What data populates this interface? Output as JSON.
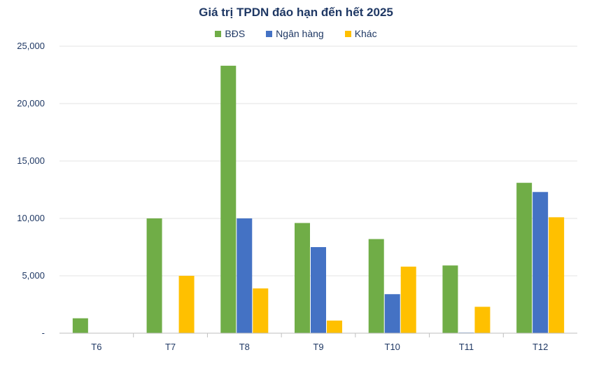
{
  "chart_data": {
    "type": "bar",
    "title": "Giá trị TPDN đáo hạn đến hết 2025",
    "categories": [
      "T6",
      "T7",
      "T8",
      "T9",
      "T10",
      "T11",
      "T12"
    ],
    "series": [
      {
        "name": "BĐS",
        "color": "#70ad47",
        "values": [
          1300,
          10000,
          23300,
          9600,
          8200,
          5900,
          13100
        ]
      },
      {
        "name": "Ngân hàng",
        "color": "#4472c4",
        "values": [
          0,
          0,
          10000,
          7500,
          3400,
          50,
          12300
        ]
      },
      {
        "name": "Khác",
        "color": "#ffc000",
        "values": [
          0,
          5000,
          3900,
          1100,
          5800,
          2300,
          10100
        ]
      }
    ],
    "ylim": [
      0,
      25000
    ],
    "yticks": [
      0,
      5000,
      10000,
      15000,
      20000,
      25000
    ],
    "ytick_labels": [
      "-",
      "5,000",
      "10,000",
      "15,000",
      "20,000",
      "25,000"
    ],
    "grid": true,
    "legend_position": "top"
  }
}
